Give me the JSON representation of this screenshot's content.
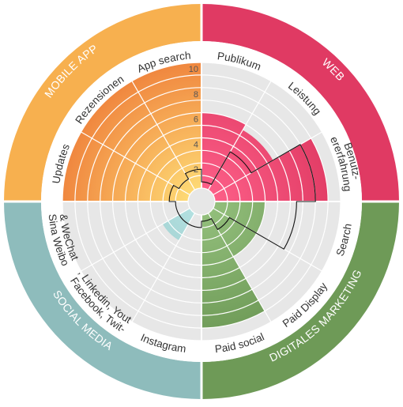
{
  "chart_data": {
    "type": "radial-bar",
    "rlim": [
      0,
      10
    ],
    "ticks": [
      "2",
      "4",
      "6",
      "8",
      "10"
    ],
    "sectors": [
      {
        "name": "MOBILE APP",
        "color": "#f7b04f",
        "categories": [
          "Updates",
          "Rezensionen",
          "App search"
        ]
      },
      {
        "name": "WEB",
        "color": "#e03a63",
        "categories": [
          "Publikum",
          "Leistung",
          "Benutz-\nererfahrung"
        ]
      },
      {
        "name": "DIGITALES MARKETING",
        "color": "#6e9a57",
        "categories": [
          "Search",
          "Paid Display",
          "Paid social"
        ]
      },
      {
        "name": "SOCIAL MEDIA",
        "color": "#8ebcbc",
        "categories": [
          "Instagram",
          "Facebook, Twit-\n-ter, Linkedin, Youtube",
          "Sina Weibo\n& WeChat"
        ]
      }
    ],
    "series": [
      {
        "values": [
          10,
          10,
          10,
          6,
          5.5,
          9,
          4,
          4,
          9,
          0,
          2.5,
          0
        ]
      },
      {
        "values": [
          1.5,
          1,
          1.5,
          0.5,
          3.5,
          8,
          6.5,
          1.5,
          0.5,
          1,
          1,
          1
        ]
      }
    ],
    "grid": true
  }
}
